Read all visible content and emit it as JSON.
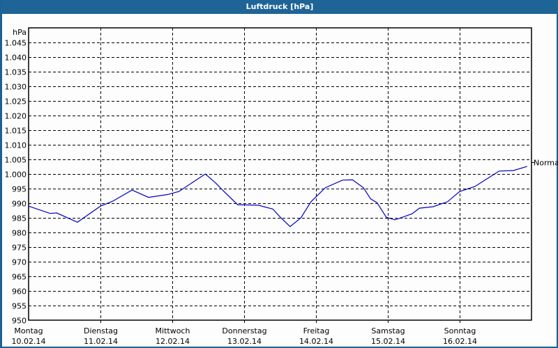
{
  "window": {
    "title": "Luftdruck [hPa]",
    "colors": {
      "titlebar": "#1e6497",
      "line": "#0000c0",
      "grid": "#000000",
      "background": "#fcfdfc"
    }
  },
  "chart_data": {
    "type": "line",
    "title": "Luftdruck [hPa]",
    "xlabel": "",
    "ylabel": "hPa",
    "ylim": [
      950,
      1050
    ],
    "yticks": [
      "1.045",
      "1.040",
      "1.035",
      "1.030",
      "1.025",
      "1.020",
      "1.015",
      "1.010",
      "1.005",
      "1.000",
      "995",
      "990",
      "985",
      "980",
      "975",
      "970",
      "965",
      "960",
      "955",
      "950"
    ],
    "ytick_values": [
      1045,
      1040,
      1035,
      1030,
      1025,
      1020,
      1015,
      1010,
      1005,
      1000,
      995,
      990,
      985,
      980,
      975,
      970,
      965,
      960,
      955,
      950
    ],
    "xlim": [
      0,
      7
    ],
    "categories": [
      {
        "day": "Montag",
        "date": "10.02.14"
      },
      {
        "day": "Dienstag",
        "date": "11.02.14"
      },
      {
        "day": "Mittwoch",
        "date": "12.02.14"
      },
      {
        "day": "Donnerstag",
        "date": "13.02.14"
      },
      {
        "day": "Freitag",
        "date": "14.02.14"
      },
      {
        "day": "Samstag",
        "date": "15.02.14"
      },
      {
        "day": "Sonntag",
        "date": "16.02.14"
      }
    ],
    "grid": true,
    "annotations": [
      {
        "text": "Normal",
        "value": 1004
      }
    ],
    "series": [
      {
        "name": "Luftdruck",
        "x": [
          0.0,
          0.3,
          0.39,
          0.68,
          1.0,
          1.17,
          1.44,
          1.67,
          1.94,
          2.09,
          2.46,
          2.6,
          2.72,
          2.91,
          3.2,
          3.4,
          3.5,
          3.64,
          3.79,
          3.93,
          4.13,
          4.37,
          4.51,
          4.66,
          4.76,
          4.85,
          4.98,
          5.1,
          5.34,
          5.44,
          5.63,
          5.83,
          6.0,
          6.21,
          6.41,
          6.55,
          6.75,
          6.94
        ],
        "values": [
          989,
          986.5,
          986.7,
          983.5,
          989,
          990.7,
          994.5,
          992,
          993,
          994,
          1000,
          997,
          994,
          989.5,
          989.3,
          988,
          985.3,
          982,
          985,
          990.5,
          995.3,
          997.9,
          998,
          995.3,
          991.5,
          990.2,
          985.2,
          984.3,
          986.4,
          988.3,
          988.8,
          990.5,
          994,
          995.7,
          998.8,
          1001,
          1001.2,
          1002.6
        ]
      }
    ]
  }
}
